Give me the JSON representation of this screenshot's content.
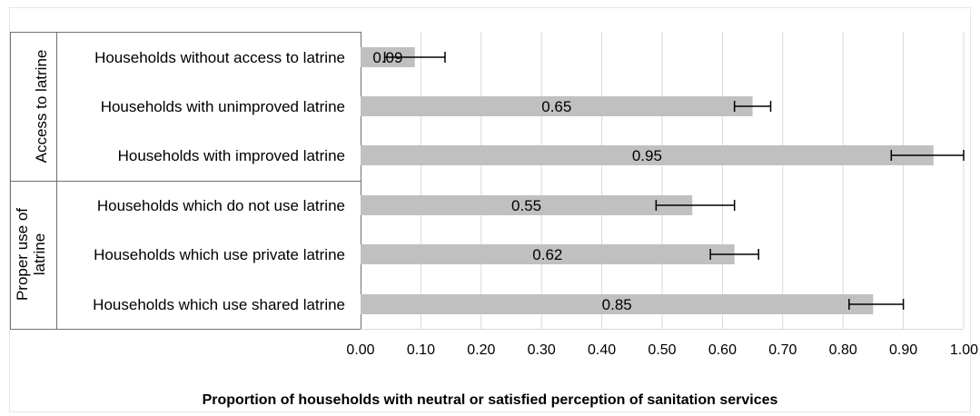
{
  "chart_data": {
    "type": "bar",
    "orientation": "horizontal",
    "groups": [
      {
        "label": "Access to latrine",
        "categories": [
          "Households without access to latrine",
          "Households with unimproved latrine",
          "Households with improved latrine"
        ]
      },
      {
        "label": "Proper use of latrine",
        "categories": [
          "Households which do not use  latrine",
          "Households which use private latrine",
          "Households which use shared latrine"
        ]
      }
    ],
    "categories": [
      "Households without access to latrine",
      "Households with unimproved latrine",
      "Households with improved latrine",
      "Households which do not use  latrine",
      "Households which use private latrine",
      "Households which use shared latrine"
    ],
    "values": [
      0.09,
      0.65,
      0.95,
      0.55,
      0.62,
      0.85
    ],
    "value_labels": [
      "0.09",
      "0.65",
      "0.95",
      "0.55",
      "0.62",
      "0.85"
    ],
    "error_low": [
      0.04,
      0.62,
      0.88,
      0.49,
      0.58,
      0.81
    ],
    "error_high": [
      0.14,
      0.68,
      1.0,
      0.62,
      0.66,
      0.9
    ],
    "xlim": [
      0,
      1.0
    ],
    "xticks": [
      0,
      0.1,
      0.2,
      0.3,
      0.4,
      0.5,
      0.6,
      0.7,
      0.8,
      0.9,
      1.0
    ],
    "xtick_labels": [
      "0.00",
      "0.10",
      "0.20",
      "0.30",
      "0.40",
      "0.50",
      "0.60",
      "0.70",
      "0.80",
      "0.90",
      "1.00"
    ],
    "xlabel": "Proportion of households  with neutral or satisfied perception of sanitation services",
    "ylabel": "",
    "title": "",
    "grid": true,
    "bar_color": "#c0c0c0",
    "grid_color": "#d9d9d9",
    "error_bar_color": "#000000"
  }
}
